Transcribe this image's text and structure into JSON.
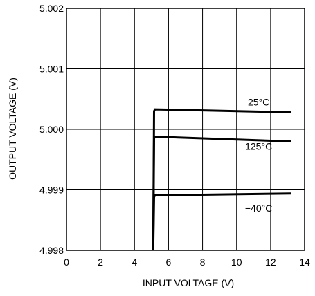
{
  "chart_data": {
    "type": "line",
    "title": "",
    "xlabel": "INPUT VOLTAGE (V)",
    "ylabel": "OUTPUT VOLTAGE (V)",
    "xlim": [
      0,
      14
    ],
    "ylim": [
      4.998,
      5.002
    ],
    "x_ticks": [
      0,
      2,
      4,
      6,
      8,
      10,
      12,
      14
    ],
    "x_tick_labels": [
      "0",
      "2",
      "4",
      "6",
      "8",
      "10",
      "12",
      "14"
    ],
    "y_ticks": [
      4.998,
      4.999,
      5.0,
      5.001,
      5.002
    ],
    "y_tick_labels": [
      "4.998",
      "4.999",
      "5.000",
      "5.001",
      "5.002"
    ],
    "grid": true,
    "series": [
      {
        "name": "25°C",
        "x": [
          5.1,
          5.15,
          5.2,
          13.2
        ],
        "y": [
          4.998,
          5.0003,
          5.00033,
          5.00028
        ]
      },
      {
        "name": "125°C",
        "x": [
          5.1,
          5.15,
          5.2,
          13.2
        ],
        "y": [
          4.998,
          4.99985,
          4.99988,
          4.9998
        ]
      },
      {
        "name": "−40°C",
        "x": [
          5.1,
          5.15,
          5.2,
          13.2
        ],
        "y": [
          4.998,
          4.99888,
          4.99891,
          4.99894
        ]
      }
    ],
    "annotations": [
      {
        "text": "25°C",
        "x": 11.3,
        "y": 5.00045
      },
      {
        "text": "125°C",
        "x": 11.3,
        "y": 4.99972
      },
      {
        "text": "−40°C",
        "x": 11.3,
        "y": 4.9987
      }
    ]
  }
}
